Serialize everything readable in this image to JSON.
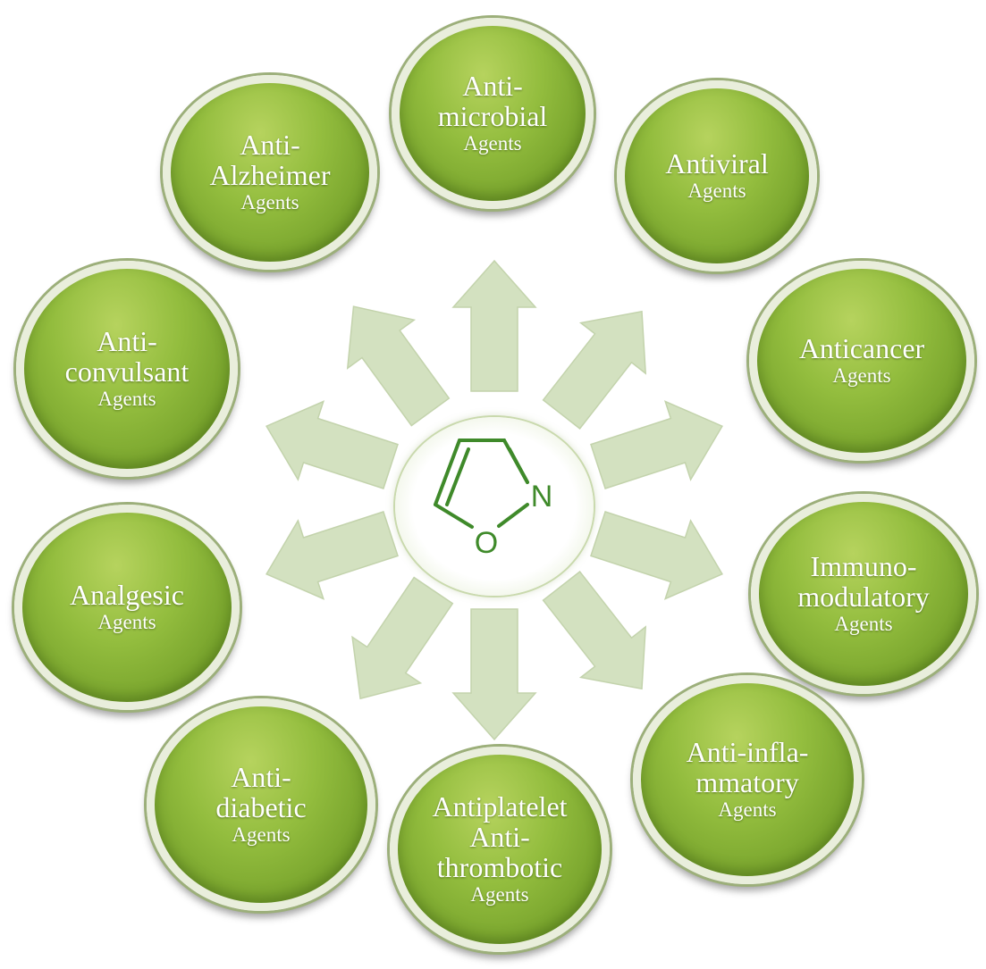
{
  "hub": {
    "atoms": {
      "nitrogen": "N",
      "oxygen": "O"
    }
  },
  "nodes": [
    {
      "id": "antimicrobial",
      "lines": [
        "Anti-",
        "microbial"
      ],
      "sub": "Agents"
    },
    {
      "id": "antiviral",
      "lines": [
        "Antiviral"
      ],
      "sub": "Agents"
    },
    {
      "id": "anticancer",
      "lines": [
        "Anticancer"
      ],
      "sub": "Agents"
    },
    {
      "id": "immunomodulatory",
      "lines": [
        "Immuno-",
        "modulatory"
      ],
      "sub": "Agents"
    },
    {
      "id": "anti-inflammatory",
      "lines": [
        "Anti-infla-",
        "mmatory"
      ],
      "sub": "Agents"
    },
    {
      "id": "antiplatelet",
      "lines": [
        "Antiplatelet",
        "Anti-",
        "thrombotic"
      ],
      "sub": "Agents"
    },
    {
      "id": "antidiabetic",
      "lines": [
        "Anti-",
        "diabetic"
      ],
      "sub": "Agents"
    },
    {
      "id": "analgesic",
      "lines": [
        "Analgesic"
      ],
      "sub": "Agents"
    },
    {
      "id": "anticonvulsant",
      "lines": [
        "Anti-",
        "convulsant"
      ],
      "sub": "Agents"
    },
    {
      "id": "antialzheimer",
      "lines": [
        "Anti-",
        "Alzheimer"
      ],
      "sub": "Agents"
    }
  ],
  "colors": {
    "node_fill": "#8cb83a",
    "node_border": "#e9eedc",
    "arrow_fill": "#d3e1c0",
    "molecule": "#3f8a2a"
  }
}
